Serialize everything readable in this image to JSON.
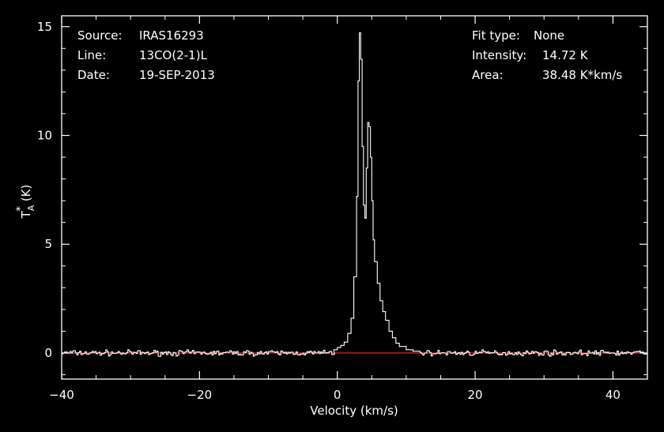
{
  "chart_data": {
    "type": "line",
    "xlabel": "Velocity (km/s)",
    "ylabel_main": "T",
    "ylabel_sub": "A",
    "ylabel_sup": "*",
    "ylabel_unit": "(K)",
    "xlim": [
      -40,
      45
    ],
    "ylim": [
      -1.2,
      15.5
    ],
    "xticks": [
      -40,
      -20,
      0,
      20,
      40
    ],
    "yticks": [
      0,
      5,
      10,
      15
    ],
    "grid": false,
    "baseline": 0,
    "info_left": [
      {
        "label": "Source:",
        "value": "IRAS16293"
      },
      {
        "label": "Line:",
        "value": "13CO(2-1)L"
      },
      {
        "label": "Date:",
        "value": "19-SEP-2013"
      }
    ],
    "info_right": [
      {
        "label": "Fit type:",
        "value": "None"
      },
      {
        "label": "Intensity:",
        "value": "14.72 K"
      },
      {
        "label": "Area:",
        "value": "38.48 K*km/s"
      }
    ],
    "series": [
      {
        "line_color": "#ffffff",
        "x": [
          -0.5,
          0.0,
          0.5,
          1.0,
          1.5,
          2.0,
          2.4,
          2.8,
          3.0,
          3.2,
          3.4,
          3.6,
          3.8,
          4.0,
          4.2,
          4.4,
          4.6,
          4.8,
          5.0,
          5.2,
          5.4,
          5.8,
          6.2,
          6.6,
          7.0,
          7.5,
          8.0,
          8.5,
          9.0,
          10.0,
          11.0,
          12.0
        ],
        "y": [
          0.15,
          0.25,
          0.35,
          0.5,
          0.9,
          1.6,
          3.5,
          7.2,
          12.5,
          14.72,
          13.5,
          9.5,
          6.8,
          6.2,
          8.5,
          10.6,
          10.4,
          9.0,
          7.0,
          5.2,
          4.2,
          3.2,
          2.4,
          1.9,
          1.5,
          1.0,
          0.7,
          0.45,
          0.3,
          0.15,
          0.08,
          0.03
        ]
      },
      {
        "line_color": "#cc2222",
        "x": [
          -40,
          45
        ],
        "y": [
          0,
          0
        ]
      }
    ]
  }
}
